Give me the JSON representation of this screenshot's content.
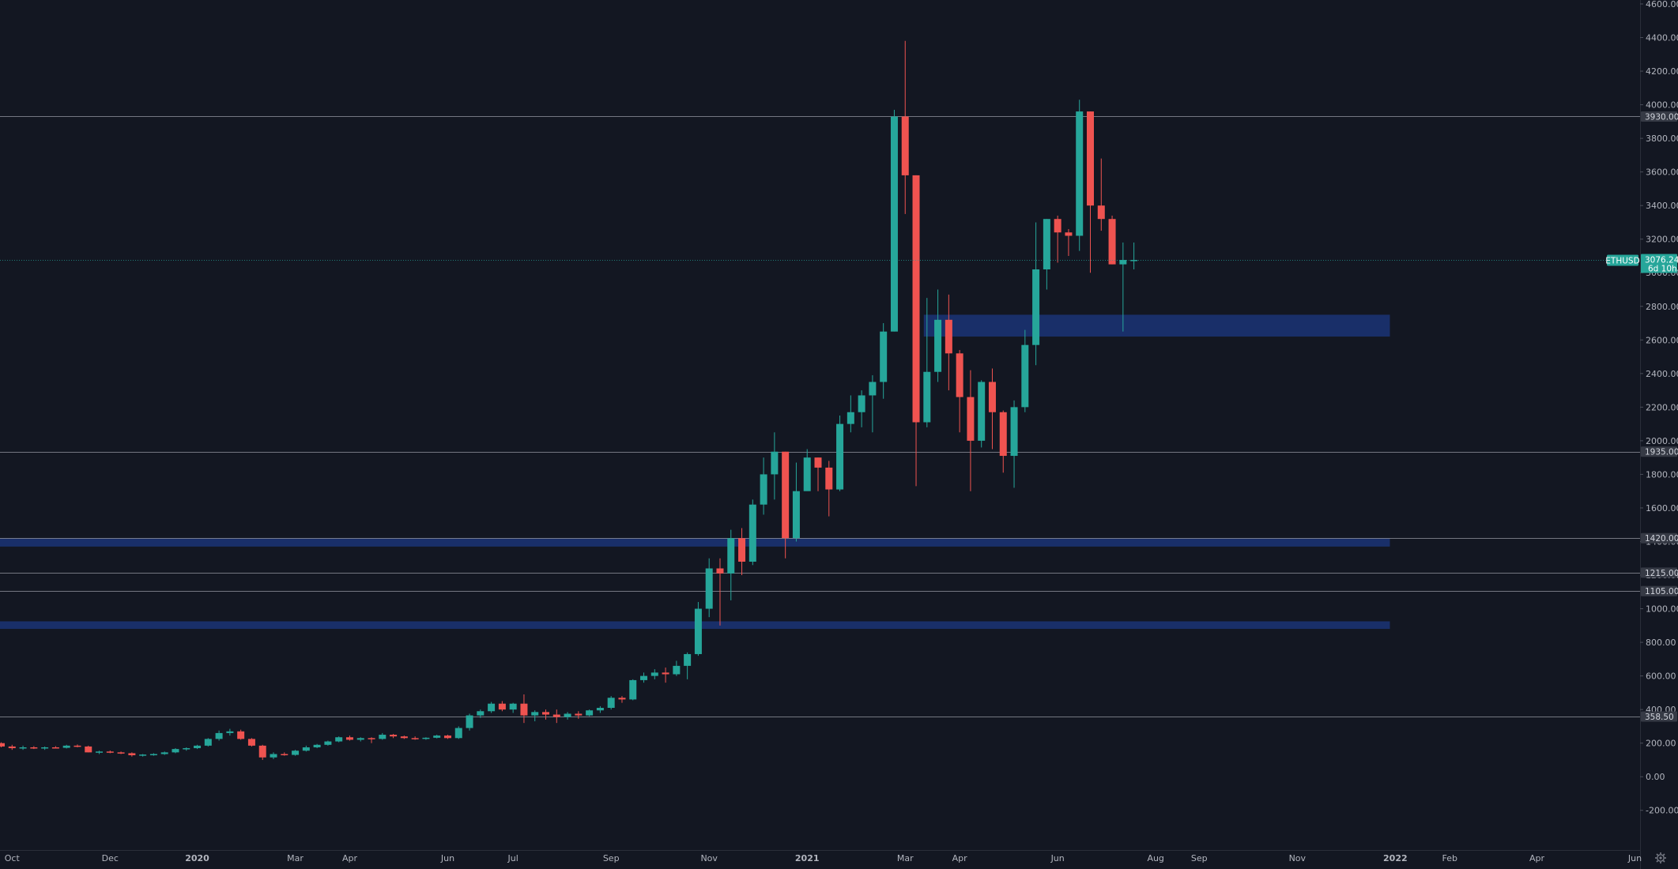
{
  "chart_data": {
    "type": "candlestick",
    "symbol": "ETHUSD",
    "interval": "weekly",
    "last_price": "3076.24",
    "countdown": "6d 10h",
    "y_axis": {
      "min": -300,
      "max": 4600,
      "ticks": [
        "4600.00",
        "4400.00",
        "4200.00",
        "4000.00",
        "3800.00",
        "3600.00",
        "3400.00",
        "3200.00",
        "3000.00",
        "2800.00",
        "2600.00",
        "2400.00",
        "2200.00",
        "2000.00",
        "1800.00",
        "1600.00",
        "1400.00",
        "1200.00",
        "1000.00",
        "800.00",
        "600.00",
        "400.00",
        "200.00",
        "0.00",
        "-200.00"
      ]
    },
    "x_axis": {
      "labels": [
        {
          "text": "Oct",
          "week": 1
        },
        {
          "text": "Dec",
          "week": 10
        },
        {
          "text": "2020",
          "week": 18
        },
        {
          "text": "Mar",
          "week": 27
        },
        {
          "text": "Apr",
          "week": 32
        },
        {
          "text": "Jun",
          "week": 41
        },
        {
          "text": "Jul",
          "week": 47
        },
        {
          "text": "Sep",
          "week": 56
        },
        {
          "text": "Nov",
          "week": 65
        },
        {
          "text": "2021",
          "week": 74
        },
        {
          "text": "Mar",
          "week": 83
        },
        {
          "text": "Apr",
          "week": 88
        },
        {
          "text": "Jun",
          "week": 97
        },
        {
          "text": "Aug",
          "week": 106
        },
        {
          "text": "Sep",
          "week": 110
        },
        {
          "text": "Nov",
          "week": 119
        },
        {
          "text": "2022",
          "week": 128
        },
        {
          "text": "Feb",
          "week": 133
        },
        {
          "text": "Apr",
          "week": 141
        },
        {
          "text": "Jun",
          "week": 150
        }
      ]
    },
    "horizontal_levels": [
      {
        "value": 3930,
        "label": "3930.00"
      },
      {
        "value": 1935,
        "label": "1935.00"
      },
      {
        "value": 1420,
        "label": "1420.00"
      },
      {
        "value": 1215,
        "label": "1215.00"
      },
      {
        "value": 1105,
        "label": "1105.00"
      },
      {
        "value": 358.5,
        "label": "358.50"
      }
    ],
    "zones": [
      {
        "low": 2620,
        "high": 2750,
        "from_week": 85
      },
      {
        "low": 1370,
        "high": 1420,
        "from_week": 0
      },
      {
        "low": 880,
        "high": 925,
        "from_week": 0
      }
    ],
    "zone_end_week": 127.5,
    "candles": [
      [
        200,
        205,
        175,
        180
      ],
      [
        180,
        190,
        160,
        170
      ],
      [
        170,
        185,
        160,
        175
      ],
      [
        175,
        182,
        165,
        170
      ],
      [
        170,
        180,
        160,
        175
      ],
      [
        175,
        182,
        168,
        172
      ],
      [
        172,
        190,
        168,
        185
      ],
      [
        185,
        192,
        175,
        180
      ],
      [
        180,
        185,
        145,
        145
      ],
      [
        145,
        155,
        135,
        150
      ],
      [
        150,
        156,
        140,
        145
      ],
      [
        145,
        150,
        135,
        140
      ],
      [
        140,
        145,
        120,
        128
      ],
      [
        128,
        135,
        120,
        132
      ],
      [
        132,
        140,
        125,
        135
      ],
      [
        135,
        150,
        130,
        145
      ],
      [
        145,
        170,
        140,
        165
      ],
      [
        165,
        175,
        155,
        170
      ],
      [
        170,
        190,
        165,
        185
      ],
      [
        185,
        230,
        180,
        225
      ],
      [
        225,
        275,
        215,
        260
      ],
      [
        260,
        285,
        245,
        270
      ],
      [
        270,
        280,
        220,
        225
      ],
      [
        225,
        230,
        180,
        185
      ],
      [
        185,
        190,
        100,
        115
      ],
      [
        115,
        145,
        105,
        135
      ],
      [
        135,
        145,
        125,
        130
      ],
      [
        130,
        160,
        125,
        155
      ],
      [
        155,
        185,
        150,
        175
      ],
      [
        175,
        195,
        170,
        190
      ],
      [
        190,
        215,
        185,
        210
      ],
      [
        210,
        240,
        205,
        235
      ],
      [
        235,
        245,
        215,
        220
      ],
      [
        220,
        235,
        210,
        230
      ],
      [
        230,
        235,
        200,
        225
      ],
      [
        225,
        260,
        220,
        250
      ],
      [
        250,
        255,
        230,
        240
      ],
      [
        240,
        245,
        225,
        230
      ],
      [
        230,
        240,
        220,
        228
      ],
      [
        228,
        235,
        220,
        232
      ],
      [
        232,
        250,
        228,
        245
      ],
      [
        245,
        250,
        225,
        230
      ],
      [
        230,
        300,
        225,
        290
      ],
      [
        290,
        375,
        275,
        365
      ],
      [
        365,
        400,
        350,
        390
      ],
      [
        390,
        445,
        380,
        435
      ],
      [
        435,
        450,
        390,
        400
      ],
      [
        400,
        440,
        380,
        435
      ],
      [
        435,
        490,
        320,
        365
      ],
      [
        365,
        395,
        330,
        385
      ],
      [
        385,
        400,
        340,
        370
      ],
      [
        370,
        400,
        320,
        355
      ],
      [
        355,
        385,
        340,
        375
      ],
      [
        375,
        390,
        345,
        365
      ],
      [
        365,
        400,
        360,
        395
      ],
      [
        395,
        420,
        380,
        410
      ],
      [
        410,
        480,
        400,
        470
      ],
      [
        470,
        480,
        440,
        460
      ],
      [
        460,
        580,
        455,
        575
      ],
      [
        575,
        620,
        560,
        600
      ],
      [
        600,
        640,
        580,
        620
      ],
      [
        620,
        650,
        560,
        610
      ],
      [
        610,
        690,
        600,
        660
      ],
      [
        660,
        740,
        580,
        730
      ],
      [
        730,
        1040,
        720,
        1000
      ],
      [
        1000,
        1300,
        950,
        1240
      ],
      [
        1240,
        1300,
        900,
        1210
      ],
      [
        1210,
        1470,
        1050,
        1420
      ],
      [
        1420,
        1480,
        1200,
        1280
      ],
      [
        1280,
        1650,
        1260,
        1620
      ],
      [
        1620,
        1900,
        1560,
        1800
      ],
      [
        1800,
        2050,
        1650,
        1935
      ],
      [
        1935,
        1935,
        1300,
        1420
      ],
      [
        1420,
        1870,
        1400,
        1700
      ],
      [
        1700,
        1950,
        1720,
        1900
      ],
      [
        1900,
        1900,
        1700,
        1840
      ],
      [
        1840,
        1880,
        1550,
        1710
      ],
      [
        1710,
        2150,
        1700,
        2100
      ],
      [
        2100,
        2270,
        2050,
        2170
      ],
      [
        2170,
        2300,
        2080,
        2270
      ],
      [
        2270,
        2390,
        2050,
        2350
      ],
      [
        2350,
        2700,
        2250,
        2650
      ],
      [
        2650,
        3970,
        2650,
        3930
      ],
      [
        3930,
        4380,
        3350,
        3580
      ],
      [
        3580,
        3580,
        1730,
        2110
      ],
      [
        2110,
        2850,
        2080,
        2410
      ],
      [
        2410,
        2900,
        2350,
        2720
      ],
      [
        2720,
        2870,
        2300,
        2520
      ],
      [
        2520,
        2540,
        2050,
        2260
      ],
      [
        2260,
        2420,
        1700,
        2000
      ],
      [
        2000,
        2360,
        1960,
        2350
      ],
      [
        2350,
        2430,
        1950,
        2170
      ],
      [
        2170,
        2180,
        1810,
        1910
      ],
      [
        1910,
        2240,
        1720,
        2200
      ],
      [
        2200,
        2660,
        2170,
        2570
      ],
      [
        2570,
        3300,
        2450,
        3020
      ],
      [
        3020,
        3320,
        2900,
        3320
      ],
      [
        3320,
        3340,
        3060,
        3240
      ],
      [
        3240,
        3260,
        3100,
        3220
      ],
      [
        3220,
        4030,
        3130,
        3960
      ],
      [
        3960,
        3960,
        3000,
        3400
      ],
      [
        3400,
        3680,
        3250,
        3320
      ],
      [
        3320,
        3340,
        3050,
        3050
      ],
      [
        3050,
        3180,
        2650,
        3076.24
      ],
      [
        3076.24,
        3180,
        3020,
        3076.24
      ]
    ]
  }
}
